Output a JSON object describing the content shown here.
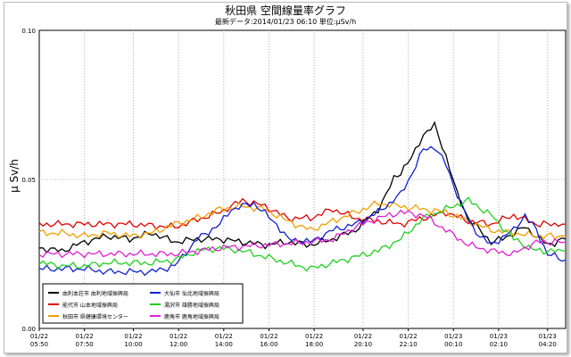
{
  "chart_data": {
    "type": "line",
    "title": "秋田県 空間線量率グラフ",
    "subtitle": "最新データ:2014/01/23 06:10 単位:μSv/h",
    "ylabel": "μ Sv/h",
    "xlabel": "",
    "ylim": [
      0,
      0.1
    ],
    "yticks": [
      {
        "value": 0,
        "label": "0.00"
      },
      {
        "value": 0.05,
        "label": "0.05"
      },
      {
        "value": 0.1,
        "label": "0.10"
      }
    ],
    "xlim": [
      0,
      23.3
    ],
    "xticks": [
      {
        "t": 0,
        "d": "01/22",
        "h": "05:50"
      },
      {
        "t": 2,
        "d": "01/22",
        "h": "07:50"
      },
      {
        "t": 4.1667,
        "d": "01/22",
        "h": "10:00"
      },
      {
        "t": 6.1667,
        "d": "01/22",
        "h": "12:00"
      },
      {
        "t": 8.1667,
        "d": "01/22",
        "h": "14:00"
      },
      {
        "t": 10.1667,
        "d": "01/22",
        "h": "16:00"
      },
      {
        "t": 12.1667,
        "d": "01/22",
        "h": "18:00"
      },
      {
        "t": 14.3333,
        "d": "01/22",
        "h": "20:10"
      },
      {
        "t": 16.3333,
        "d": "01/22",
        "h": "22:10"
      },
      {
        "t": 18.3333,
        "d": "01/23",
        "h": "00:10"
      },
      {
        "t": 20.3333,
        "d": "01/23",
        "h": "02:10"
      },
      {
        "t": 22.5,
        "d": "01/23",
        "h": "04:20"
      }
    ],
    "grid": true,
    "legend_position": "bottom-left",
    "series": [
      {
        "name": "由利本荘市 由利地域振興局",
        "color": "#000000",
        "points": [
          [
            0,
            0.027
          ],
          [
            1,
            0.026
          ],
          [
            2,
            0.029
          ],
          [
            3,
            0.031
          ],
          [
            4,
            0.03
          ],
          [
            5,
            0.032
          ],
          [
            6,
            0.029
          ],
          [
            7,
            0.03
          ],
          [
            8,
            0.03
          ],
          [
            9,
            0.029
          ],
          [
            10,
            0.028
          ],
          [
            11,
            0.029
          ],
          [
            12,
            0.028
          ],
          [
            13,
            0.03
          ],
          [
            14,
            0.033
          ],
          [
            15,
            0.04
          ],
          [
            15.7,
            0.05
          ],
          [
            16.3,
            0.055
          ],
          [
            17,
            0.065
          ],
          [
            17.5,
            0.068
          ],
          [
            18,
            0.058
          ],
          [
            18.5,
            0.045
          ],
          [
            19,
            0.037
          ],
          [
            19.5,
            0.033
          ],
          [
            20,
            0.029
          ],
          [
            20.5,
            0.03
          ],
          [
            21,
            0.032
          ],
          [
            21.5,
            0.034
          ],
          [
            22,
            0.031
          ],
          [
            22.5,
            0.028
          ],
          [
            23.3,
            0.03
          ]
        ]
      },
      {
        "name": "能代市 山本地域振興局",
        "color": "#e00000",
        "points": [
          [
            0,
            0.035
          ],
          [
            2,
            0.035
          ],
          [
            4,
            0.035
          ],
          [
            6,
            0.034
          ],
          [
            8,
            0.039
          ],
          [
            9,
            0.043
          ],
          [
            10,
            0.041
          ],
          [
            11,
            0.037
          ],
          [
            12,
            0.037
          ],
          [
            13,
            0.04
          ],
          [
            14,
            0.037
          ],
          [
            15,
            0.036
          ],
          [
            16,
            0.035
          ],
          [
            17,
            0.037
          ],
          [
            18,
            0.039
          ],
          [
            19,
            0.036
          ],
          [
            20,
            0.035
          ],
          [
            21,
            0.038
          ],
          [
            22,
            0.035
          ],
          [
            23.3,
            0.035
          ]
        ]
      },
      {
        "name": "秋田市 県健康環境センター",
        "color": "#f0a000",
        "points": [
          [
            0,
            0.032
          ],
          [
            1,
            0.032
          ],
          [
            2,
            0.031
          ],
          [
            3,
            0.032
          ],
          [
            4,
            0.031
          ],
          [
            5,
            0.032
          ],
          [
            6,
            0.035
          ],
          [
            7,
            0.037
          ],
          [
            8,
            0.04
          ],
          [
            9,
            0.041
          ],
          [
            10,
            0.04
          ],
          [
            11,
            0.036
          ],
          [
            12,
            0.033
          ],
          [
            13,
            0.036
          ],
          [
            14,
            0.039
          ],
          [
            15,
            0.042
          ],
          [
            16,
            0.041
          ],
          [
            17,
            0.04
          ],
          [
            18,
            0.039
          ],
          [
            19,
            0.036
          ],
          [
            20,
            0.033
          ],
          [
            21,
            0.032
          ],
          [
            22,
            0.031
          ],
          [
            23.3,
            0.031
          ]
        ]
      },
      {
        "name": "大仙市 仙北地域振興局",
        "color": "#1020d0",
        "points": [
          [
            0,
            0.02
          ],
          [
            1,
            0.02
          ],
          [
            2,
            0.02
          ],
          [
            3,
            0.019
          ],
          [
            4,
            0.019
          ],
          [
            5,
            0.019
          ],
          [
            6,
            0.021
          ],
          [
            7,
            0.03
          ],
          [
            8,
            0.035
          ],
          [
            8.5,
            0.04
          ],
          [
            9.5,
            0.042
          ],
          [
            10.5,
            0.035
          ],
          [
            11,
            0.03
          ],
          [
            12,
            0.029
          ],
          [
            13,
            0.033
          ],
          [
            14,
            0.035
          ],
          [
            15,
            0.039
          ],
          [
            16,
            0.045
          ],
          [
            16.5,
            0.052
          ],
          [
            17,
            0.06
          ],
          [
            17.5,
            0.061
          ],
          [
            18,
            0.055
          ],
          [
            18.5,
            0.045
          ],
          [
            19,
            0.036
          ],
          [
            19.5,
            0.031
          ],
          [
            20,
            0.028
          ],
          [
            21,
            0.033
          ],
          [
            21.5,
            0.038
          ],
          [
            22,
            0.033
          ],
          [
            22.5,
            0.025
          ],
          [
            23.3,
            0.023
          ]
        ]
      },
      {
        "name": "湯沢市 雄勝地域振興局",
        "color": "#20d020",
        "points": [
          [
            0,
            0.022
          ],
          [
            1,
            0.021
          ],
          [
            2,
            0.021
          ],
          [
            3,
            0.022
          ],
          [
            4,
            0.022
          ],
          [
            5,
            0.022
          ],
          [
            6,
            0.023
          ],
          [
            7,
            0.026
          ],
          [
            8,
            0.027
          ],
          [
            9,
            0.026
          ],
          [
            10,
            0.024
          ],
          [
            11,
            0.022
          ],
          [
            12,
            0.02
          ],
          [
            13,
            0.022
          ],
          [
            14,
            0.024
          ],
          [
            15,
            0.026
          ],
          [
            16,
            0.03
          ],
          [
            17,
            0.037
          ],
          [
            18,
            0.04
          ],
          [
            19,
            0.043
          ],
          [
            20,
            0.038
          ],
          [
            21,
            0.03
          ],
          [
            22,
            0.026
          ],
          [
            23.3,
            0.026
          ]
        ]
      },
      {
        "name": "鹿角市 鹿角地域振興局",
        "color": "#e020d0",
        "points": [
          [
            0,
            0.025
          ],
          [
            2,
            0.025
          ],
          [
            4,
            0.025
          ],
          [
            6,
            0.025
          ],
          [
            8,
            0.027
          ],
          [
            10,
            0.028
          ],
          [
            12,
            0.029
          ],
          [
            13,
            0.03
          ],
          [
            14,
            0.034
          ],
          [
            15,
            0.037
          ],
          [
            16,
            0.039
          ],
          [
            17,
            0.038
          ],
          [
            18,
            0.033
          ],
          [
            19,
            0.028
          ],
          [
            20,
            0.026
          ],
          [
            21,
            0.025
          ],
          [
            22,
            0.029
          ],
          [
            23.3,
            0.029
          ]
        ]
      }
    ]
  }
}
